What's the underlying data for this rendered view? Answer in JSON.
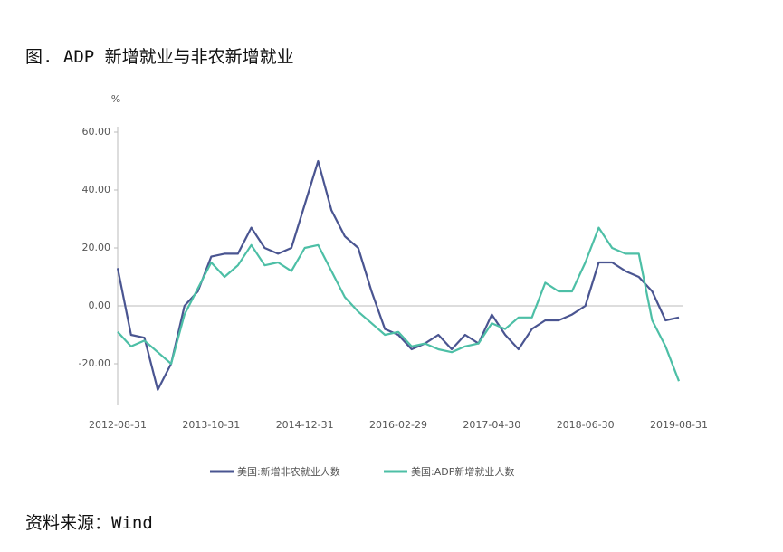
{
  "title": "图. ADP 新增就业与非农新增就业",
  "source": "资料来源：Wind",
  "chart_data": {
    "type": "line",
    "y_label": "%",
    "categories": [
      "2012-08-31",
      null,
      null,
      null,
      null,
      null,
      null,
      "2013-10-31",
      null,
      null,
      null,
      null,
      null,
      null,
      "2014-12-31",
      null,
      null,
      null,
      null,
      null,
      null,
      "2016-02-29",
      null,
      null,
      null,
      null,
      null,
      null,
      "2017-04-30",
      null,
      null,
      null,
      null,
      null,
      null,
      "2018-06-30",
      null,
      null,
      null,
      null,
      null,
      null,
      "2019-08-31"
    ],
    "series": [
      {
        "name": "美国:新增非农就业人数",
        "color": "#4a5591",
        "values": [
          13,
          -10,
          -11,
          -29,
          -20,
          0,
          5,
          17,
          18,
          18,
          27,
          20,
          18,
          20,
          35,
          50,
          33,
          24,
          20,
          5,
          -8,
          -10,
          -15,
          -13,
          -10,
          -15,
          -10,
          -13,
          -3,
          -10,
          -15,
          -8,
          -5,
          -5,
          -3,
          0,
          15,
          15,
          12,
          10,
          5,
          -5,
          -4
        ]
      },
      {
        "name": "美国:ADP新增就业人数",
        "color": "#4dbfa6",
        "values": [
          -9,
          -14,
          -12,
          -16,
          -20,
          -3,
          6,
          15,
          10,
          14,
          21,
          14,
          15,
          12,
          20,
          21,
          12,
          3,
          -2,
          -6,
          -10,
          -9,
          -14,
          -13,
          -15,
          -16,
          -14,
          -13,
          -6,
          -8,
          -4,
          -4,
          8,
          5,
          5,
          15,
          27,
          20,
          18,
          18,
          -5,
          -14,
          -26
        ]
      }
    ],
    "ylim": [
      -35,
      65
    ],
    "yticks": [
      {
        "value": 60,
        "label": "60.00"
      },
      {
        "value": 40,
        "label": "40.00"
      },
      {
        "value": 20,
        "label": "20.00"
      },
      {
        "value": 0,
        "label": "0.00"
      },
      {
        "value": -20,
        "label": "-20.00"
      }
    ]
  }
}
